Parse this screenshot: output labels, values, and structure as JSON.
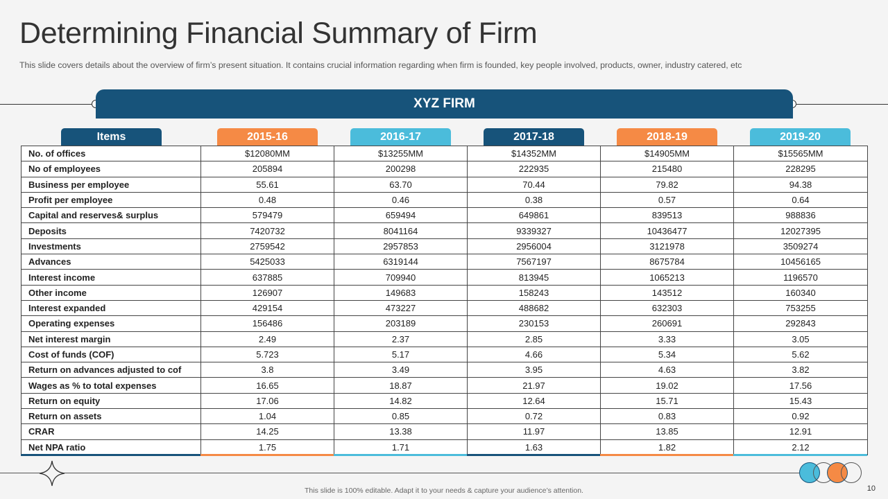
{
  "title": "Determining Financial Summary of Firm",
  "subtitle": "This slide covers details about the overview  of firm’s present situation. It contains crucial information  regarding when firm is founded,  key people involved,  products, owner, industry catered, etc",
  "banner": "XYZ FIRM",
  "headers": {
    "items": "Items",
    "years": [
      "2015-16",
      "2016-17",
      "2017-18",
      "2018-19",
      "2019-20"
    ]
  },
  "colors": {
    "dark_blue": "#17537a",
    "orange": "#f58a45",
    "light_blue": "#4bbcdb"
  },
  "rows": [
    {
      "label": "No. of offices",
      "values": [
        "$12080MM",
        "$13255MM",
        "$14352MM",
        "$14905MM",
        "$15565MM"
      ]
    },
    {
      "label": "No of employees",
      "values": [
        "205894",
        "200298",
        "222935",
        "215480",
        "228295"
      ]
    },
    {
      "label": "Business  per employee",
      "values": [
        "55.61",
        "63.70",
        "70.44",
        "79.82",
        "94.38"
      ]
    },
    {
      "label": "Profit per employee",
      "values": [
        "0.48",
        "0.46",
        "0.38",
        "0.57",
        "0.64"
      ]
    },
    {
      "label": "Capital and reserves& surplus",
      "values": [
        "579479",
        "659494",
        "649861",
        "839513",
        "988836"
      ]
    },
    {
      "label": "Deposits",
      "values": [
        "7420732",
        "8041164",
        "9339327",
        "10436477",
        "12027395"
      ]
    },
    {
      "label": "Investments",
      "values": [
        "2759542",
        "2957853",
        "2956004",
        "3121978",
        "3509274"
      ]
    },
    {
      "label": "Advances",
      "values": [
        "5425033",
        "6319144",
        "7567197",
        "8675784",
        "10456165"
      ]
    },
    {
      "label": "Interest income",
      "values": [
        "637885",
        "709940",
        "813945",
        "1065213",
        "1196570"
      ]
    },
    {
      "label": "Other income",
      "values": [
        "126907",
        "149683",
        "158243",
        "143512",
        "160340"
      ]
    },
    {
      "label": "Interest expanded",
      "values": [
        "429154",
        "473227",
        "488682",
        "632303",
        "753255"
      ]
    },
    {
      "label": "Operating expenses",
      "values": [
        "156486",
        "203189",
        "230153",
        "260691",
        "292843"
      ]
    },
    {
      "label": "Net interest margin",
      "values": [
        "2.49",
        "2.37",
        "2.85",
        "3.33",
        "3.05"
      ]
    },
    {
      "label": "Cost of funds (COF)",
      "values": [
        "5.723",
        "5.17",
        "4.66",
        "5.34",
        "5.62"
      ]
    },
    {
      "label": "Return on advances adjusted to cof",
      "values": [
        "3.8",
        "3.49",
        "3.95",
        "4.63",
        "3.82"
      ]
    },
    {
      "label": "Wages as % to total expenses",
      "values": [
        "16.65",
        "18.87",
        "21.97",
        "19.02",
        "17.56"
      ]
    },
    {
      "label": "Return on equity",
      "values": [
        "17.06",
        "14.82",
        "12.64",
        "15.71",
        "15.43"
      ]
    },
    {
      "label": "Return on assets",
      "values": [
        "1.04",
        "0.85",
        "0.72",
        "0.83",
        "0.92"
      ]
    },
    {
      "label": "CRAR",
      "values": [
        "14.25",
        "13.38",
        "11.97",
        "13.85",
        "12.91"
      ]
    },
    {
      "label": "Net NPA ratio",
      "values": [
        "1.75",
        "1.71",
        "1.63",
        "1.82",
        "2.12"
      ]
    }
  ],
  "footnote": "This slide is 100% editable.  Adapt it to your needs & capture your audience’s attention.",
  "page_number": "10"
}
